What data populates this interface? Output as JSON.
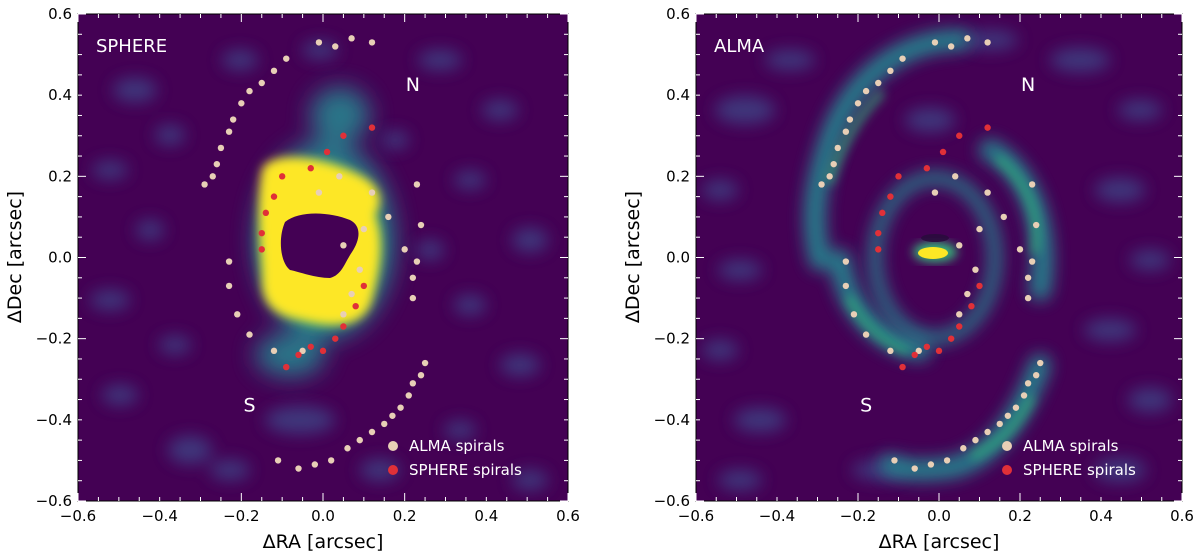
{
  "chart_data": [
    {
      "type": "scatter",
      "panel": "left",
      "title": "SPHERE",
      "xlabel": "ΔRA [arcsec]",
      "ylabel": "ΔDec [arcsec]",
      "xlim": [
        -0.6,
        0.6
      ],
      "ylim": [
        -0.6,
        0.6
      ],
      "xticks": [
        "−0.6",
        "−0.4",
        "−0.2",
        "0.0",
        "0.2",
        "0.4",
        "0.6"
      ],
      "yticks": [
        "−0.6",
        "−0.4",
        "−0.2",
        "0.0",
        "0.2",
        "0.4",
        "0.6"
      ],
      "annotations": [
        {
          "text": "N",
          "x": 0.22,
          "y": 0.41
        },
        {
          "text": "S",
          "x": -0.18,
          "y": -0.38
        }
      ],
      "legend": [
        "ALMA spirals",
        "SPHERE spirals"
      ]
    },
    {
      "type": "scatter",
      "panel": "right",
      "title": "ALMA",
      "xlabel": "ΔRA [arcsec]",
      "ylabel": "ΔDec [arcsec]",
      "xlim": [
        -0.6,
        0.6
      ],
      "ylim": [
        -0.6,
        0.6
      ],
      "xticks": [
        "−0.6",
        "−0.4",
        "−0.2",
        "0.0",
        "0.2",
        "0.4",
        "0.6"
      ],
      "yticks": [
        "−0.6",
        "−0.4",
        "−0.2",
        "0.0",
        "0.2",
        "0.4",
        "0.6"
      ],
      "annotations": [
        {
          "text": "N",
          "x": 0.22,
          "y": 0.41
        },
        {
          "text": "S",
          "x": -0.18,
          "y": -0.38
        }
      ],
      "legend": [
        "ALMA spirals",
        "SPHERE spirals"
      ]
    }
  ],
  "series": {
    "alma_spirals": {
      "name": "ALMA spirals",
      "color": "#e8cfb6",
      "points": [
        [
          -0.01,
          0.53
        ],
        [
          0.03,
          0.52
        ],
        [
          0.07,
          0.54
        ],
        [
          0.12,
          0.53
        ],
        [
          -0.09,
          0.49
        ],
        [
          -0.12,
          0.46
        ],
        [
          -0.15,
          0.43
        ],
        [
          -0.18,
          0.41
        ],
        [
          -0.2,
          0.38
        ],
        [
          -0.22,
          0.34
        ],
        [
          -0.23,
          0.31
        ],
        [
          -0.25,
          0.27
        ],
        [
          -0.26,
          0.23
        ],
        [
          -0.27,
          0.2
        ],
        [
          -0.29,
          0.18
        ],
        [
          0.04,
          0.2
        ],
        [
          -0.01,
          0.16
        ],
        [
          0.12,
          0.16
        ],
        [
          0.16,
          0.1
        ],
        [
          0.2,
          0.02
        ],
        [
          0.23,
          0.18
        ],
        [
          0.24,
          0.08
        ],
        [
          0.23,
          -0.01
        ],
        [
          0.22,
          -0.05
        ],
        [
          0.22,
          -0.1
        ],
        [
          0.25,
          -0.26
        ],
        [
          0.24,
          -0.29
        ],
        [
          0.22,
          -0.31
        ],
        [
          0.21,
          -0.34
        ],
        [
          0.19,
          -0.37
        ],
        [
          0.17,
          -0.39
        ],
        [
          0.15,
          -0.41
        ],
        [
          0.12,
          -0.43
        ],
        [
          0.09,
          -0.45
        ],
        [
          0.06,
          -0.47
        ],
        [
          0.02,
          -0.5
        ],
        [
          -0.02,
          -0.51
        ],
        [
          -0.06,
          -0.52
        ],
        [
          -0.11,
          -0.5
        ],
        [
          -0.23,
          -0.01
        ],
        [
          -0.23,
          -0.07
        ],
        [
          -0.21,
          -0.14
        ],
        [
          -0.18,
          -0.19
        ],
        [
          -0.12,
          -0.23
        ],
        [
          -0.05,
          -0.23
        ],
        [
          0.05,
          -0.14
        ],
        [
          0.07,
          -0.09
        ],
        [
          0.09,
          -0.03
        ],
        [
          0.05,
          0.03
        ],
        [
          0.1,
          0.07
        ]
      ]
    },
    "sphere_spirals": {
      "name": "SPHERE spirals",
      "color": "#e03038",
      "points": [
        [
          0.12,
          0.32
        ],
        [
          0.05,
          0.3
        ],
        [
          0.01,
          0.26
        ],
        [
          -0.03,
          0.22
        ],
        [
          -0.1,
          0.2
        ],
        [
          -0.12,
          0.15
        ],
        [
          -0.14,
          0.11
        ],
        [
          -0.15,
          0.06
        ],
        [
          -0.15,
          0.02
        ],
        [
          0.1,
          -0.07
        ],
        [
          0.08,
          -0.12
        ],
        [
          0.05,
          -0.17
        ],
        [
          0.03,
          -0.2
        ],
        [
          0.0,
          -0.23
        ],
        [
          -0.03,
          -0.22
        ],
        [
          -0.06,
          -0.24
        ],
        [
          -0.09,
          -0.27
        ]
      ]
    }
  },
  "colors": {
    "background": "#440154",
    "low": "#3e4a89",
    "mid": "#26828e",
    "high": "#35b779",
    "peak": "#fde725"
  }
}
